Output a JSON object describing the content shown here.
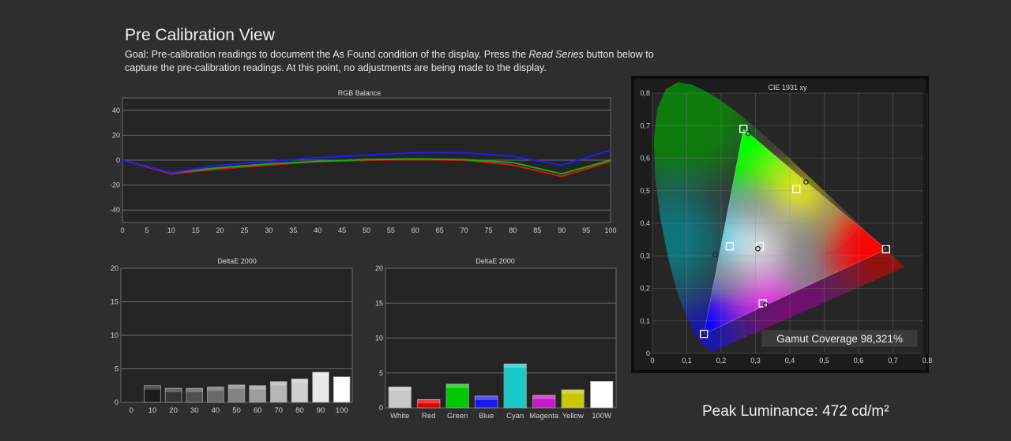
{
  "header": {
    "title": "Pre Calibration View",
    "goal_prefix": "Goal: Pre-calibration readings to document the As Found condition of the display. Press the ",
    "goal_emphasis": "Read Series",
    "goal_suffix": " button below to capture the pre-calibration readings. At this point, no adjustments are being made to the display."
  },
  "peak_luminance": "Peak Luminance: 472 cd/m²",
  "colors": {
    "background": "#2e2e2e",
    "plot_bg": "#242424",
    "red": "#e01010",
    "green": "#10b010",
    "blue": "#1c1cff"
  },
  "chart_data": [
    {
      "id": "rgb",
      "type": "line",
      "title": "RGB Balance",
      "x": [
        0,
        10,
        20,
        30,
        40,
        50,
        60,
        70,
        80,
        90,
        100
      ],
      "xticks": [
        "0",
        "5",
        "10",
        "15",
        "20",
        "25",
        "30",
        "35",
        "40",
        "45",
        "50",
        "55",
        "60",
        "65",
        "70",
        "75",
        "80",
        "85",
        "90",
        "95",
        "100"
      ],
      "yticks": [
        "40",
        "20",
        "0",
        "-20",
        "-40"
      ],
      "xlim": [
        0,
        100
      ],
      "ylim": [
        -50,
        50
      ],
      "grid": true,
      "series": [
        {
          "color": "#e01010",
          "values": [
            0,
            -11,
            -7,
            -4,
            -1,
            0,
            0.5,
            0,
            -4,
            -13,
            -1
          ]
        },
        {
          "color": "#10b010",
          "values": [
            0,
            -10,
            -6,
            -3,
            -1,
            0.5,
            1,
            0.5,
            -2,
            -11,
            0
          ]
        },
        {
          "color": "#1c1cff",
          "values": [
            0,
            -10,
            -4,
            -1,
            2,
            4,
            6,
            6,
            3,
            -4,
            8
          ]
        }
      ]
    },
    {
      "id": "de_gray",
      "type": "bar",
      "title": "DeltaE 2000",
      "categories": [
        "0",
        "10",
        "20",
        "30",
        "40",
        "50",
        "60",
        "70",
        "80",
        "90",
        "100"
      ],
      "yticks": [
        "20",
        "15",
        "10",
        "5",
        "0"
      ],
      "ylim": [
        0,
        20
      ],
      "grid": true,
      "values": [
        0,
        2.5,
        2.1,
        2.1,
        2.3,
        2.6,
        2.5,
        3.1,
        3.5,
        4.5,
        3.8
      ],
      "bar_colors": [
        "#000000",
        "#1c1c1c",
        "#353535",
        "#4f4f4f",
        "#696969",
        "#838383",
        "#9d9d9d",
        "#b6b6b6",
        "#cfcfcf",
        "#e8e8e8",
        "#ffffff"
      ]
    },
    {
      "id": "de_color",
      "type": "bar",
      "title": "DeltaE 2000",
      "categories": [
        "White",
        "Red",
        "Green",
        "Blue",
        "Cyan",
        "Magenta",
        "Yellow",
        "100W"
      ],
      "yticks": [
        "20",
        "15",
        "10",
        "5",
        "0"
      ],
      "ylim": [
        0,
        20
      ],
      "grid": true,
      "values": [
        3.0,
        1.2,
        3.4,
        1.7,
        6.3,
        1.8,
        2.6,
        3.8
      ],
      "bar_colors": [
        "#c8c8c8",
        "#e00000",
        "#00c800",
        "#1818f0",
        "#19c8c8",
        "#c817c8",
        "#c8c800",
        "#ffffff"
      ]
    },
    {
      "id": "cie",
      "type": "scatter",
      "title": "CIE 1931 xy",
      "xticks": [
        "0",
        "0,1",
        "0,2",
        "0,3",
        "0,4",
        "0,5",
        "0,6",
        "0,7",
        "0,8"
      ],
      "yticks": [
        "0,8",
        "0,7",
        "0,6",
        "0,5",
        "0,4",
        "0,3",
        "0,2",
        "0,1",
        "0"
      ],
      "xlim": [
        0,
        0.8
      ],
      "ylim": [
        0,
        0.8
      ],
      "grid": true,
      "locus": [
        [
          0.1741,
          0.005
        ],
        [
          0.1644,
          0.0109
        ],
        [
          0.144,
          0.0297
        ],
        [
          0.1241,
          0.0578
        ],
        [
          0.0913,
          0.1327
        ],
        [
          0.0687,
          0.2007
        ],
        [
          0.0454,
          0.295
        ],
        [
          0.0235,
          0.4127
        ],
        [
          0.0082,
          0.5384
        ],
        [
          0.0039,
          0.6548
        ],
        [
          0.0139,
          0.7502
        ],
        [
          0.0389,
          0.812
        ],
        [
          0.0743,
          0.8338
        ],
        [
          0.1142,
          0.8262
        ],
        [
          0.1547,
          0.8059
        ],
        [
          0.1929,
          0.7816
        ],
        [
          0.2296,
          0.7543
        ],
        [
          0.2658,
          0.7243
        ],
        [
          0.3016,
          0.6923
        ],
        [
          0.3373,
          0.6589
        ],
        [
          0.3731,
          0.6245
        ],
        [
          0.4087,
          0.5896
        ],
        [
          0.4441,
          0.5547
        ],
        [
          0.4788,
          0.5202
        ],
        [
          0.5125,
          0.4866
        ],
        [
          0.5448,
          0.4544
        ],
        [
          0.5752,
          0.4242
        ],
        [
          0.6029,
          0.3965
        ],
        [
          0.627,
          0.3725
        ],
        [
          0.6482,
          0.3514
        ],
        [
          0.6658,
          0.334
        ],
        [
          0.6915,
          0.3083
        ],
        [
          0.7347,
          0.2653
        ]
      ],
      "gamut_triangle": [
        [
          0.68,
          0.32
        ],
        [
          0.265,
          0.69
        ],
        [
          0.15,
          0.06
        ]
      ],
      "targets": [
        [
          0.68,
          0.32
        ],
        [
          0.265,
          0.69
        ],
        [
          0.15,
          0.06
        ],
        [
          0.225,
          0.329
        ],
        [
          0.321,
          0.154
        ],
        [
          0.419,
          0.505
        ],
        [
          0.3127,
          0.329
        ]
      ],
      "measured": [
        [
          0.679,
          0.323
        ],
        [
          0.279,
          0.676
        ],
        [
          0.152,
          0.061
        ],
        [
          0.183,
          0.303
        ],
        [
          0.329,
          0.149
        ],
        [
          0.447,
          0.527
        ],
        [
          0.307,
          0.322
        ]
      ],
      "annotation": "Gamut Coverage 98,321%"
    }
  ]
}
